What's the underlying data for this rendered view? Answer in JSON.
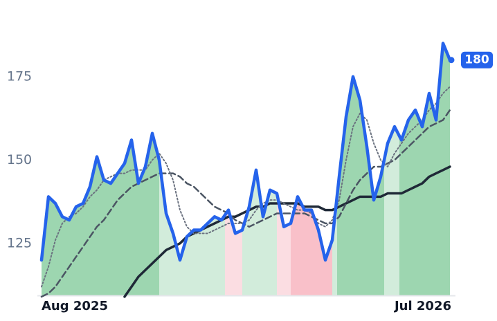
{
  "chart_data": {
    "type": "line",
    "categories": [
      "Aug 2025",
      null,
      null,
      null,
      null,
      null,
      null,
      null,
      null,
      null,
      null,
      null,
      null,
      null,
      null,
      null,
      null,
      null,
      null,
      null,
      null,
      null,
      null,
      null,
      null,
      null,
      null,
      null,
      null,
      null,
      null,
      null,
      null,
      null,
      null,
      null,
      null,
      null,
      null,
      null,
      null,
      null,
      null,
      null,
      null,
      null,
      null,
      null,
      null,
      null,
      null,
      null,
      null,
      null,
      null,
      null,
      null,
      null,
      null,
      "Jul 2026"
    ],
    "series": [
      {
        "color": "#2563eb",
        "values": [
          120,
          139,
          137,
          133,
          132,
          136,
          137,
          142,
          151,
          144,
          143,
          146,
          149,
          156,
          143,
          148,
          158,
          150,
          134,
          128,
          120,
          127,
          129,
          129,
          131,
          133,
          132,
          135,
          128,
          129,
          136,
          147,
          133,
          141,
          140,
          130,
          131,
          139,
          135,
          135,
          129,
          120,
          126,
          145,
          163,
          175,
          168,
          154,
          138,
          145,
          155,
          160,
          156,
          162,
          165,
          160,
          170,
          162,
          185,
          180
        ]
      },
      {
        "color": "#6b7280",
        "style": "dotted",
        "values": [
          112,
          118,
          126,
          131,
          133,
          134,
          136,
          139,
          141,
          144,
          145,
          146,
          146,
          147,
          147,
          147,
          150,
          152,
          149,
          144,
          135,
          130,
          128,
          128,
          128,
          129,
          130,
          131,
          131,
          131,
          132,
          135,
          137,
          138,
          138,
          137,
          136,
          135,
          135,
          134,
          131,
          130,
          132,
          138,
          150,
          160,
          164,
          162,
          155,
          150,
          148,
          152,
          155,
          158,
          160,
          162,
          165,
          167,
          170,
          172
        ]
      },
      {
        "color": "#4b5563",
        "style": "dashed",
        "values": [
          109,
          110,
          112,
          115,
          118,
          121,
          124,
          127,
          130,
          132,
          135,
          138,
          140,
          142,
          143,
          144,
          145,
          146,
          146,
          146,
          145,
          143,
          142,
          140,
          138,
          136,
          135,
          134,
          132,
          131,
          130,
          131,
          132,
          133,
          134,
          134,
          134,
          134,
          134,
          133,
          132,
          131,
          131,
          133,
          137,
          141,
          144,
          146,
          148,
          148,
          149,
          150,
          152,
          154,
          156,
          158,
          160,
          161,
          162,
          165
        ]
      },
      {
        "color": "#1f2937",
        "style": "solid",
        "values": [
          null,
          null,
          null,
          null,
          null,
          null,
          null,
          null,
          null,
          null,
          null,
          null,
          109,
          112,
          115,
          117,
          119,
          121,
          123,
          124,
          125,
          127,
          128,
          129,
          130,
          131,
          132,
          133,
          133,
          134,
          135,
          136,
          136,
          137,
          137,
          137,
          137,
          137,
          136,
          136,
          136,
          135,
          135,
          136,
          137,
          138,
          139,
          139,
          139,
          139,
          140,
          140,
          140,
          141,
          142,
          143,
          145,
          146,
          147,
          148
        ]
      }
    ],
    "zones": [
      {
        "from": 0,
        "to": 17,
        "color": "#9dd6b0"
      },
      {
        "from": 17,
        "to": 26.5,
        "color": "#d2ecdb"
      },
      {
        "from": 26.5,
        "to": 29,
        "color": "#fbdde2"
      },
      {
        "from": 29,
        "to": 34,
        "color": "#d2ecdb"
      },
      {
        "from": 34,
        "to": 36,
        "color": "#fbdde2"
      },
      {
        "from": 36,
        "to": 42,
        "color": "#f9c0c9"
      },
      {
        "from": 42,
        "to": 42.7,
        "color": "#d2ecdb"
      },
      {
        "from": 42.7,
        "to": 49.5,
        "color": "#9dd6b0"
      },
      {
        "from": 49.5,
        "to": 51.7,
        "color": "#d2ecdb"
      },
      {
        "from": 51.7,
        "to": 59,
        "color": "#9dd6b0"
      }
    ],
    "ylim": [
      109.4,
      198
    ],
    "yticks": [
      125,
      150,
      175
    ],
    "grid": false
  }
}
